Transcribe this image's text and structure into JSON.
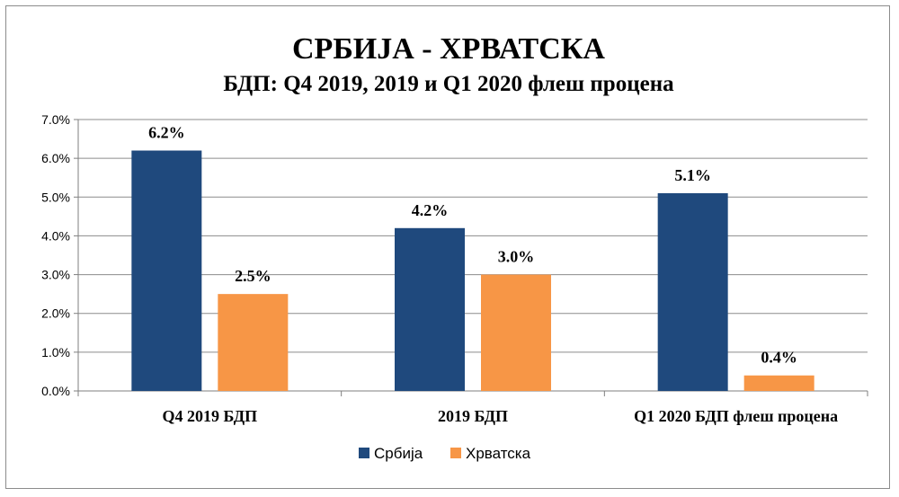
{
  "chart_data": {
    "type": "bar",
    "title": "СРБИЈА - ХРВАТСКА",
    "subtitle": "БДП: Q4 2019, 2019 и Q1 2020 флеш процена",
    "categories": [
      "Q4 2019 БДП",
      "2019 БДП",
      "Q1 2020 БДП флеш процена"
    ],
    "series": [
      {
        "name": "Србија",
        "color": "#1f497d",
        "values": [
          6.2,
          4.2,
          5.1
        ],
        "labels": [
          "6.2%",
          "4.2%",
          "5.1%"
        ]
      },
      {
        "name": "Хрватска",
        "color": "#f79646",
        "values": [
          2.5,
          3.0,
          0.4
        ],
        "labels": [
          "2.5%",
          "3.0%",
          "0.4%"
        ]
      }
    ],
    "ylim": [
      0,
      7
    ],
    "yticks": [
      "0.0%",
      "1.0%",
      "2.0%",
      "3.0%",
      "4.0%",
      "5.0%",
      "6.0%",
      "7.0%"
    ],
    "grid": true,
    "legend": "bottom-center",
    "xlabel": "",
    "ylabel": ""
  }
}
